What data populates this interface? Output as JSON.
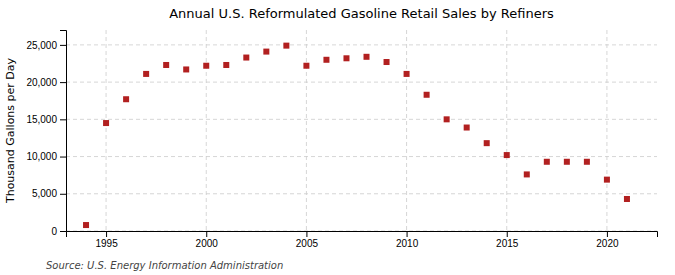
{
  "chart_data": {
    "type": "scatter",
    "title": "Annual U.S. Reformulated Gasoline Retail Sales by Refiners",
    "ylabel": "Thousand Gallons per Day",
    "annotations": [
      "Source: U.S. Energy Information Administration"
    ],
    "x": [
      1994,
      1995,
      1996,
      1997,
      1998,
      1999,
      2000,
      2001,
      2002,
      2003,
      2004,
      2005,
      2006,
      2007,
      2008,
      2009,
      2010,
      2011,
      2012,
      2013,
      2014,
      2015,
      2016,
      2017,
      2018,
      2019,
      2020,
      2021
    ],
    "values": [
      800,
      14500,
      17700,
      21100,
      22300,
      21700,
      22200,
      22300,
      23300,
      24100,
      24900,
      22200,
      23000,
      23200,
      23400,
      22700,
      21100,
      18300,
      15000,
      13900,
      11800,
      10200,
      7600,
      9300,
      9300,
      9300,
      6900,
      4300
    ],
    "color": "#b22020",
    "marker": "square",
    "xlim": [
      1993.0,
      2022.5
    ],
    "ylim": [
      0,
      27000
    ],
    "xticks": [
      1995,
      2000,
      2005,
      2010,
      2015,
      2020
    ],
    "yticks": [
      0,
      {
        "value": 5000,
        "label": "5,000"
      },
      {
        "value": 10000,
        "label": "10,000"
      },
      {
        "value": 15000,
        "label": "15,000"
      },
      {
        "value": 20000,
        "label": "20,000"
      },
      {
        "value": 25000,
        "label": "25,000"
      }
    ],
    "grid": true
  }
}
